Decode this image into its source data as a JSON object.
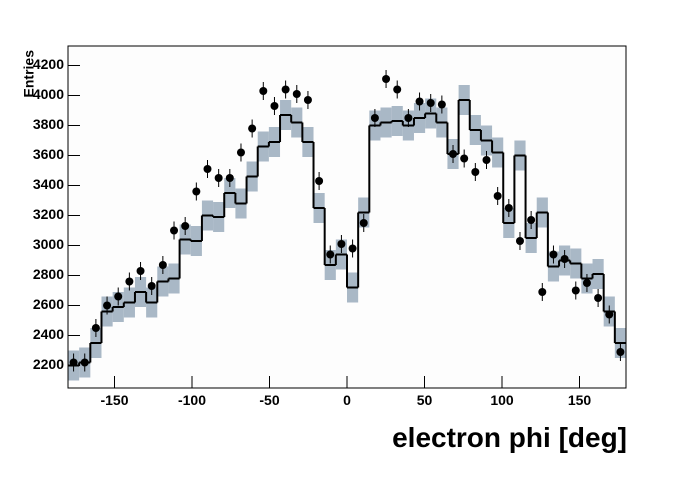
{
  "chart_data": {
    "type": "histogram",
    "x_label": "electron phi [deg]",
    "y_label": "Entries",
    "xlim": [
      -180,
      180
    ],
    "xticks": [
      -150,
      -100,
      -50,
      0,
      50,
      100,
      150
    ],
    "ylim": [
      2050,
      4330
    ],
    "yticks": [
      2200,
      2400,
      2600,
      2800,
      3000,
      3200,
      3400,
      3600,
      3800,
      4000,
      4200
    ],
    "band_color": "#a9b8c6",
    "band_error": 100,
    "series": [
      {
        "kind": "step",
        "color": "#000000",
        "values": [
          2200,
          2220,
          2350,
          2560,
          2590,
          2620,
          2690,
          2620,
          2760,
          2780,
          3040,
          3030,
          3200,
          3190,
          3350,
          3280,
          3460,
          3660,
          3690,
          3870,
          3820,
          3690,
          3250,
          2870,
          2940,
          2720,
          3220,
          3800,
          3820,
          3830,
          3800,
          3850,
          3880,
          3820,
          3610,
          3970,
          3770,
          3700,
          3620,
          3150,
          3600,
          3050,
          3220,
          2860,
          2900,
          2880,
          2780,
          2810,
          2560,
          2350
        ]
      },
      {
        "kind": "points",
        "color": "#000000",
        "error": 60,
        "values": [
          2220,
          2220,
          2450,
          2600,
          2660,
          2760,
          2830,
          2730,
          2870,
          3100,
          3130,
          3360,
          3510,
          3450,
          3450,
          3620,
          3780,
          4030,
          3930,
          4040,
          4010,
          3970,
          3430,
          2940,
          3010,
          2980,
          3150,
          3850,
          4110,
          4040,
          3850,
          3960,
          3950,
          3940,
          3610,
          3580,
          3490,
          3570,
          3330,
          3250,
          3030,
          3170,
          2690,
          2940,
          2910,
          2700,
          2750,
          2650,
          2540,
          2290
        ]
      }
    ]
  }
}
